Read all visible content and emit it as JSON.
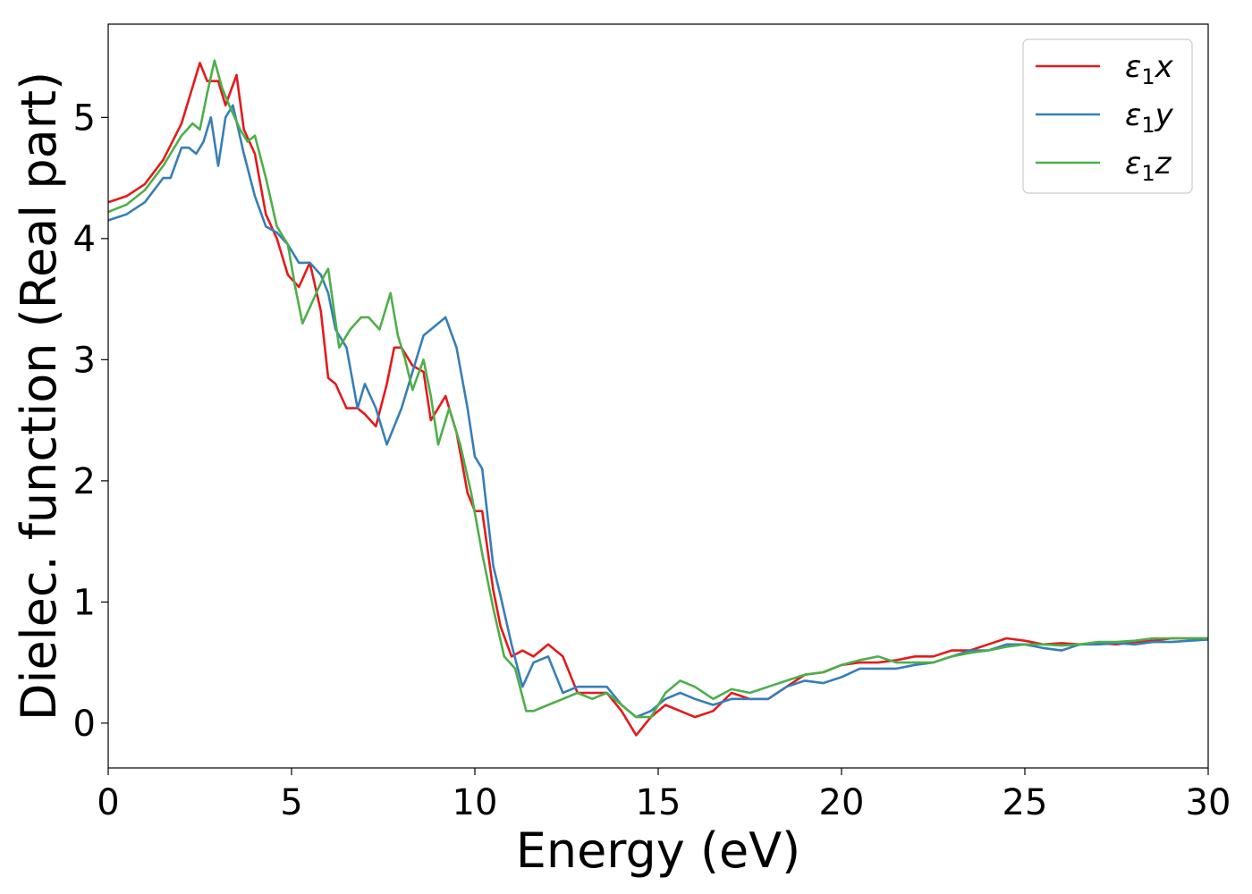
{
  "chart_data": {
    "type": "line",
    "title": "",
    "xlabel": "Energy (eV)",
    "ylabel": "Dielec. function (Real part)",
    "xlim": [
      0,
      30
    ],
    "ylim": [
      -0.37,
      5.77
    ],
    "xticks": [
      0,
      5,
      10,
      15,
      20,
      25,
      30
    ],
    "yticks": [
      0,
      1,
      2,
      3,
      4,
      5
    ],
    "grid": false,
    "legend_position": "top-right",
    "series": [
      {
        "name": "ε₁x",
        "legend_base": "ε",
        "legend_sub": "1",
        "legend_suffix": "x",
        "color": "#e41a1c",
        "x": [
          0,
          0.5,
          1.0,
          1.5,
          2.0,
          2.2,
          2.5,
          2.7,
          3.0,
          3.2,
          3.5,
          3.7,
          4.0,
          4.3,
          4.6,
          4.9,
          5.2,
          5.5,
          5.8,
          6.0,
          6.2,
          6.5,
          6.8,
          7.0,
          7.3,
          7.6,
          7.8,
          8.0,
          8.3,
          8.6,
          8.8,
          9.0,
          9.2,
          9.5,
          9.8,
          10.0,
          10.2,
          10.5,
          10.7,
          11.0,
          11.3,
          11.6,
          12.0,
          12.4,
          12.8,
          13.2,
          13.6,
          14.0,
          14.4,
          14.8,
          15.2,
          15.6,
          16.0,
          16.5,
          17.0,
          17.5,
          18.0,
          18.5,
          19.0,
          19.5,
          20.0,
          20.5,
          21.0,
          21.5,
          22.0,
          22.5,
          23.0,
          23.5,
          24.0,
          24.5,
          25.0,
          25.5,
          26.0,
          26.5,
          27.0,
          27.5,
          28.0,
          28.5,
          29.0,
          29.5,
          30.0
        ],
        "y": [
          4.3,
          4.35,
          4.45,
          4.65,
          4.95,
          5.15,
          5.45,
          5.3,
          5.3,
          5.1,
          5.35,
          4.9,
          4.7,
          4.2,
          4.0,
          3.7,
          3.6,
          3.8,
          3.4,
          2.85,
          2.8,
          2.6,
          2.6,
          2.55,
          2.45,
          2.8,
          3.1,
          3.1,
          2.95,
          2.9,
          2.5,
          2.6,
          2.7,
          2.4,
          1.9,
          1.75,
          1.75,
          1.1,
          0.8,
          0.55,
          0.6,
          0.55,
          0.65,
          0.55,
          0.25,
          0.25,
          0.25,
          0.1,
          -0.1,
          0.05,
          0.15,
          0.1,
          0.05,
          0.1,
          0.25,
          0.2,
          0.2,
          0.3,
          0.4,
          0.42,
          0.48,
          0.5,
          0.5,
          0.52,
          0.55,
          0.55,
          0.6,
          0.6,
          0.65,
          0.7,
          0.68,
          0.65,
          0.66,
          0.65,
          0.66,
          0.65,
          0.67,
          0.68,
          0.7,
          0.7,
          0.7
        ]
      },
      {
        "name": "ε₁y",
        "legend_base": "ε",
        "legend_sub": "1",
        "legend_suffix": "y",
        "color": "#377eb8",
        "x": [
          0,
          0.5,
          1.0,
          1.5,
          1.7,
          2.0,
          2.2,
          2.4,
          2.6,
          2.8,
          3.0,
          3.2,
          3.4,
          3.7,
          4.0,
          4.3,
          4.6,
          4.9,
          5.2,
          5.5,
          5.8,
          6.0,
          6.2,
          6.5,
          6.8,
          7.0,
          7.3,
          7.6,
          7.8,
          8.0,
          8.3,
          8.6,
          8.8,
          9.0,
          9.2,
          9.5,
          9.8,
          10.0,
          10.2,
          10.5,
          10.7,
          11.0,
          11.3,
          11.6,
          12.0,
          12.4,
          12.8,
          13.2,
          13.6,
          14.0,
          14.4,
          14.8,
          15.2,
          15.6,
          16.0,
          16.5,
          17.0,
          17.5,
          18.0,
          18.5,
          19.0,
          19.5,
          20.0,
          20.5,
          21.0,
          21.5,
          22.0,
          22.5,
          23.0,
          23.5,
          24.0,
          24.5,
          25.0,
          25.5,
          26.0,
          26.5,
          27.0,
          27.5,
          28.0,
          28.5,
          29.0,
          29.5,
          30.0
        ],
        "y": [
          4.15,
          4.2,
          4.3,
          4.5,
          4.5,
          4.75,
          4.75,
          4.7,
          4.8,
          5.0,
          4.6,
          5.0,
          5.1,
          4.7,
          4.35,
          4.1,
          4.05,
          3.95,
          3.8,
          3.8,
          3.7,
          3.55,
          3.25,
          3.1,
          2.6,
          2.8,
          2.6,
          2.3,
          2.45,
          2.6,
          2.9,
          3.2,
          3.25,
          3.3,
          3.35,
          3.1,
          2.6,
          2.2,
          2.1,
          1.3,
          1.05,
          0.65,
          0.3,
          0.5,
          0.55,
          0.25,
          0.3,
          0.3,
          0.3,
          0.15,
          0.05,
          0.1,
          0.2,
          0.25,
          0.2,
          0.15,
          0.2,
          0.2,
          0.2,
          0.3,
          0.35,
          0.33,
          0.38,
          0.45,
          0.45,
          0.45,
          0.48,
          0.5,
          0.55,
          0.6,
          0.6,
          0.65,
          0.65,
          0.62,
          0.6,
          0.65,
          0.65,
          0.66,
          0.65,
          0.67,
          0.67,
          0.68,
          0.69
        ]
      },
      {
        "name": "ε₁z",
        "legend_base": "ε",
        "legend_sub": "1",
        "legend_suffix": "z",
        "color": "#4daf4a",
        "x": [
          0,
          0.5,
          1.0,
          1.5,
          2.0,
          2.3,
          2.5,
          2.7,
          2.9,
          3.1,
          3.3,
          3.6,
          3.8,
          4.0,
          4.3,
          4.6,
          4.9,
          5.1,
          5.3,
          5.6,
          5.9,
          6.0,
          6.3,
          6.6,
          6.9,
          7.1,
          7.4,
          7.7,
          7.9,
          8.1,
          8.3,
          8.6,
          8.8,
          9.0,
          9.3,
          9.6,
          9.9,
          10.2,
          10.5,
          10.8,
          11.1,
          11.4,
          11.6,
          12.0,
          12.4,
          12.8,
          13.2,
          13.6,
          14.0,
          14.4,
          14.8,
          15.2,
          15.6,
          16.0,
          16.5,
          17.0,
          17.5,
          18.0,
          18.5,
          19.0,
          19.5,
          20.0,
          20.5,
          21.0,
          21.5,
          22.0,
          22.5,
          23.0,
          23.5,
          24.0,
          24.5,
          25.0,
          25.5,
          26.0,
          26.5,
          27.0,
          27.5,
          28.0,
          28.5,
          29.0,
          29.5,
          30.0
        ],
        "y": [
          4.22,
          4.28,
          4.4,
          4.6,
          4.85,
          4.95,
          4.9,
          5.2,
          5.47,
          5.25,
          5.1,
          4.9,
          4.8,
          4.85,
          4.5,
          4.1,
          3.95,
          3.6,
          3.3,
          3.5,
          3.7,
          3.75,
          3.1,
          3.25,
          3.35,
          3.35,
          3.25,
          3.55,
          3.2,
          3.0,
          2.75,
          3.0,
          2.7,
          2.3,
          2.6,
          2.3,
          1.9,
          1.4,
          0.95,
          0.55,
          0.45,
          0.1,
          0.1,
          0.15,
          0.2,
          0.25,
          0.2,
          0.25,
          0.15,
          0.05,
          0.05,
          0.25,
          0.35,
          0.3,
          0.2,
          0.28,
          0.25,
          0.3,
          0.35,
          0.4,
          0.42,
          0.48,
          0.52,
          0.55,
          0.5,
          0.5,
          0.5,
          0.55,
          0.58,
          0.6,
          0.63,
          0.65,
          0.65,
          0.64,
          0.65,
          0.67,
          0.67,
          0.68,
          0.7,
          0.7,
          0.7,
          0.7
        ]
      }
    ]
  }
}
